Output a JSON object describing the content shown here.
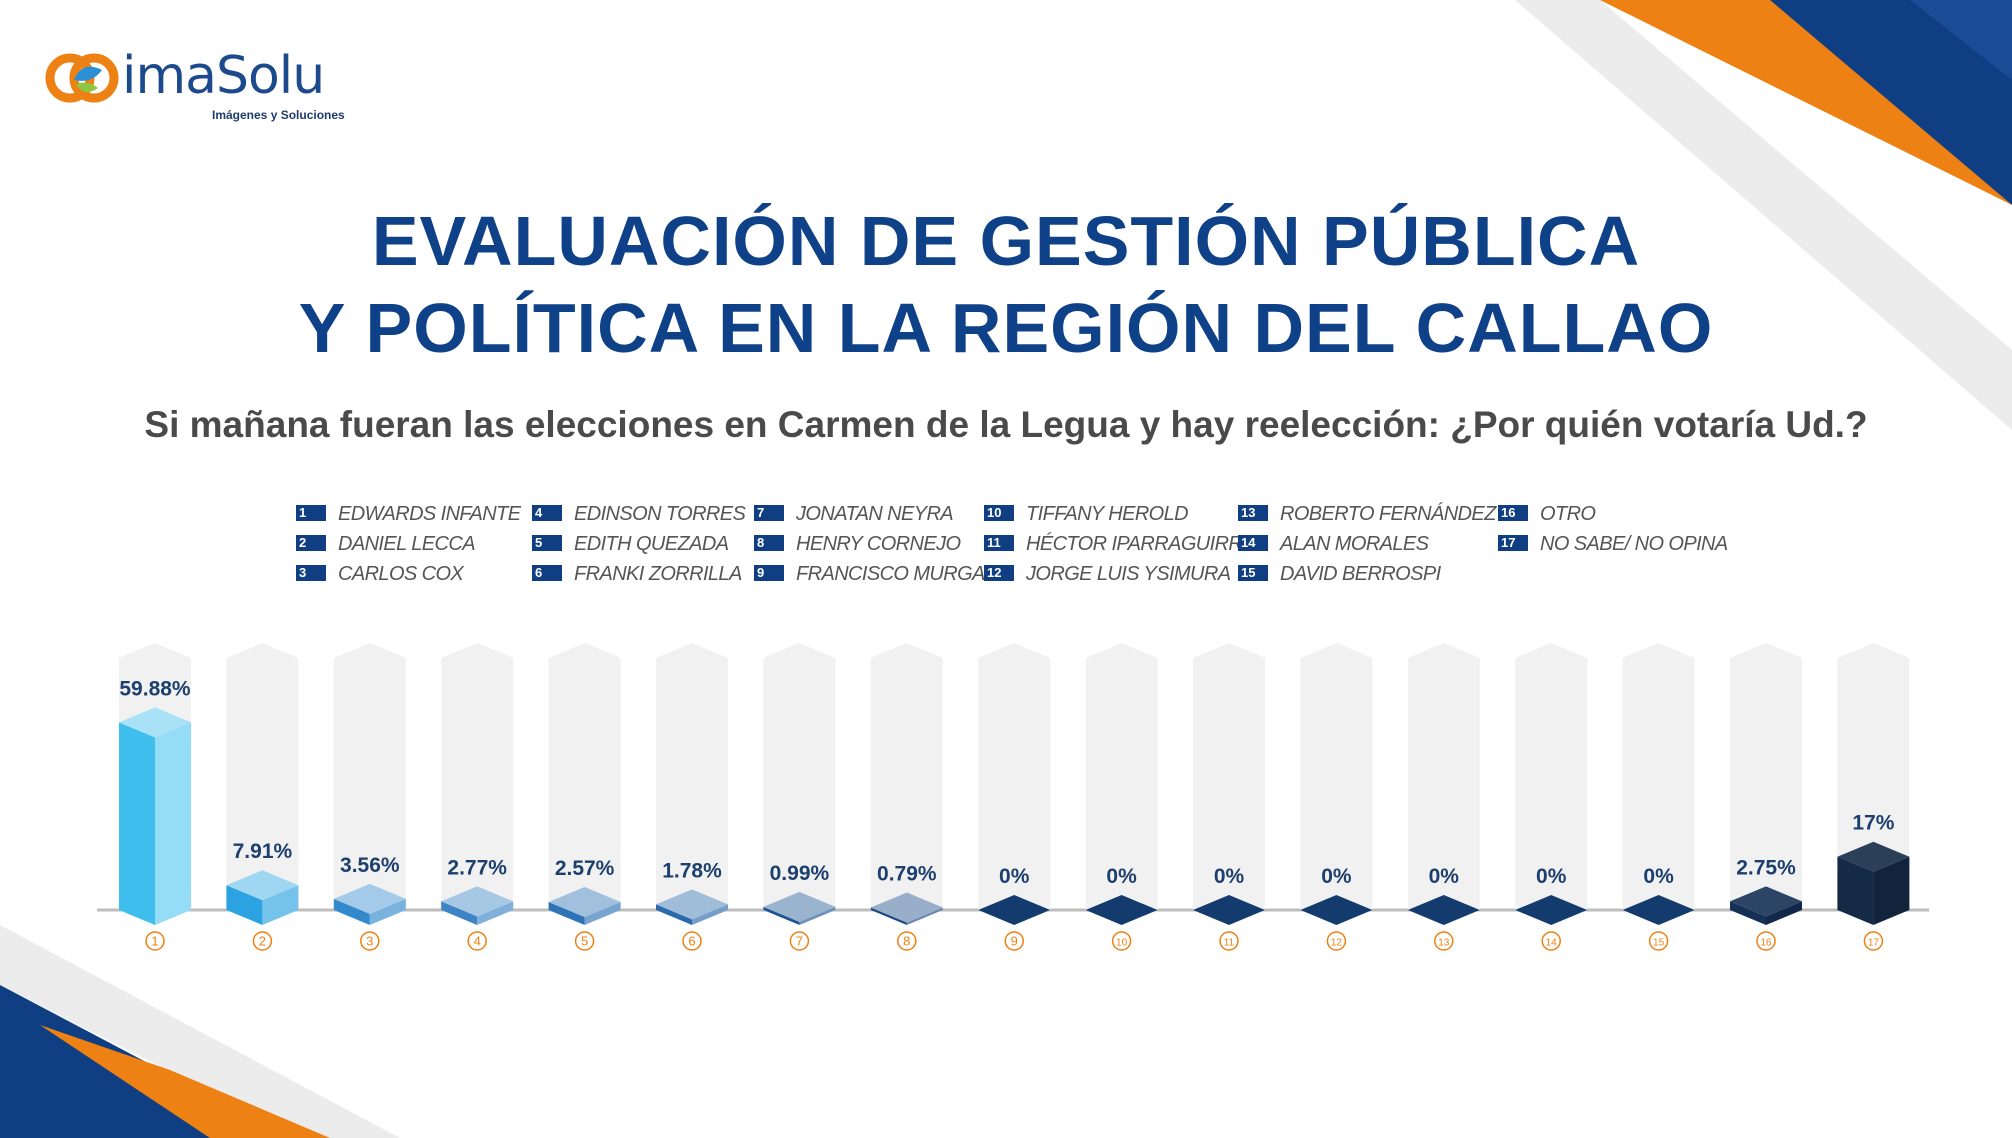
{
  "brand": {
    "name": "imaSolu",
    "tagline": "Imágenes y Soluciones"
  },
  "header": {
    "title_line1": "EVALUACIÓN DE GESTIÓN PÚBLICA",
    "title_line2": "Y POLÍTICA EN LA REGIÓN DEL CALLAO",
    "question": "Si mañana fueran las elecciones en Carmen de la Legua y hay reelección: ¿Por quién votaría Ud.?"
  },
  "colors": {
    "title": "#0f4188",
    "navy": "#0f3f82",
    "orange": "#ee8113",
    "track": "#f1f1f1"
  },
  "chart_data": {
    "type": "bar",
    "title": "",
    "xlabel": "",
    "ylabel": "",
    "ylim": [
      0,
      60
    ],
    "grid": false,
    "legend_placement": "top",
    "categories": [
      "1",
      "2",
      "3",
      "4",
      "5",
      "6",
      "7",
      "8",
      "9",
      "10",
      "11",
      "12",
      "13",
      "14",
      "15",
      "16",
      "17"
    ],
    "legend": [
      {
        "num": "1",
        "name": "EDWARDS INFANTE"
      },
      {
        "num": "2",
        "name": "DANIEL LECCA"
      },
      {
        "num": "3",
        "name": "CARLOS COX"
      },
      {
        "num": "4",
        "name": "EDINSON TORRES"
      },
      {
        "num": "5",
        "name": "EDITH QUEZADA"
      },
      {
        "num": "6",
        "name": "FRANKI ZORRILLA"
      },
      {
        "num": "7",
        "name": "JONATAN NEYRA"
      },
      {
        "num": "8",
        "name": "HENRY CORNEJO"
      },
      {
        "num": "9",
        "name": "FRANCISCO MURGA"
      },
      {
        "num": "10",
        "name": "TIFFANY HEROLD"
      },
      {
        "num": "11",
        "name": "HÉCTOR IPARRAGUIRRE"
      },
      {
        "num": "12",
        "name": "JORGE LUIS YSIMURA"
      },
      {
        "num": "13",
        "name": "ROBERTO FERNÁNDEZ"
      },
      {
        "num": "14",
        "name": "ALAN MORALES"
      },
      {
        "num": "15",
        "name": "DAVID BERROSPI"
      },
      {
        "num": "16",
        "name": "OTRO"
      },
      {
        "num": "17",
        "name": "NO SABE/ NO OPINA"
      }
    ],
    "values": [
      59.88,
      7.91,
      3.56,
      2.77,
      2.57,
      1.78,
      0.99,
      0.79,
      0,
      0,
      0,
      0,
      0,
      0,
      0,
      2.75,
      17
    ],
    "value_labels": [
      "59.88%",
      "7.91%",
      "3.56%",
      "2.77%",
      "2.57%",
      "1.78%",
      "0.99%",
      "0.79%",
      "0%",
      "0%",
      "0%",
      "0%",
      "0%",
      "0%",
      "0%",
      "2.75%",
      "17%"
    ],
    "bar_colors": [
      "#3fbfee",
      "#2aa3e0",
      "#3289cc",
      "#3c84c6",
      "#2f73b6",
      "#2a6aaa",
      "#1e5594",
      "#1c4a85",
      "#133b6d",
      "#133b6d",
      "#133b6d",
      "#133b6d",
      "#133b6d",
      "#133b6d",
      "#133b6d",
      "#152f55",
      "#152a45"
    ]
  }
}
